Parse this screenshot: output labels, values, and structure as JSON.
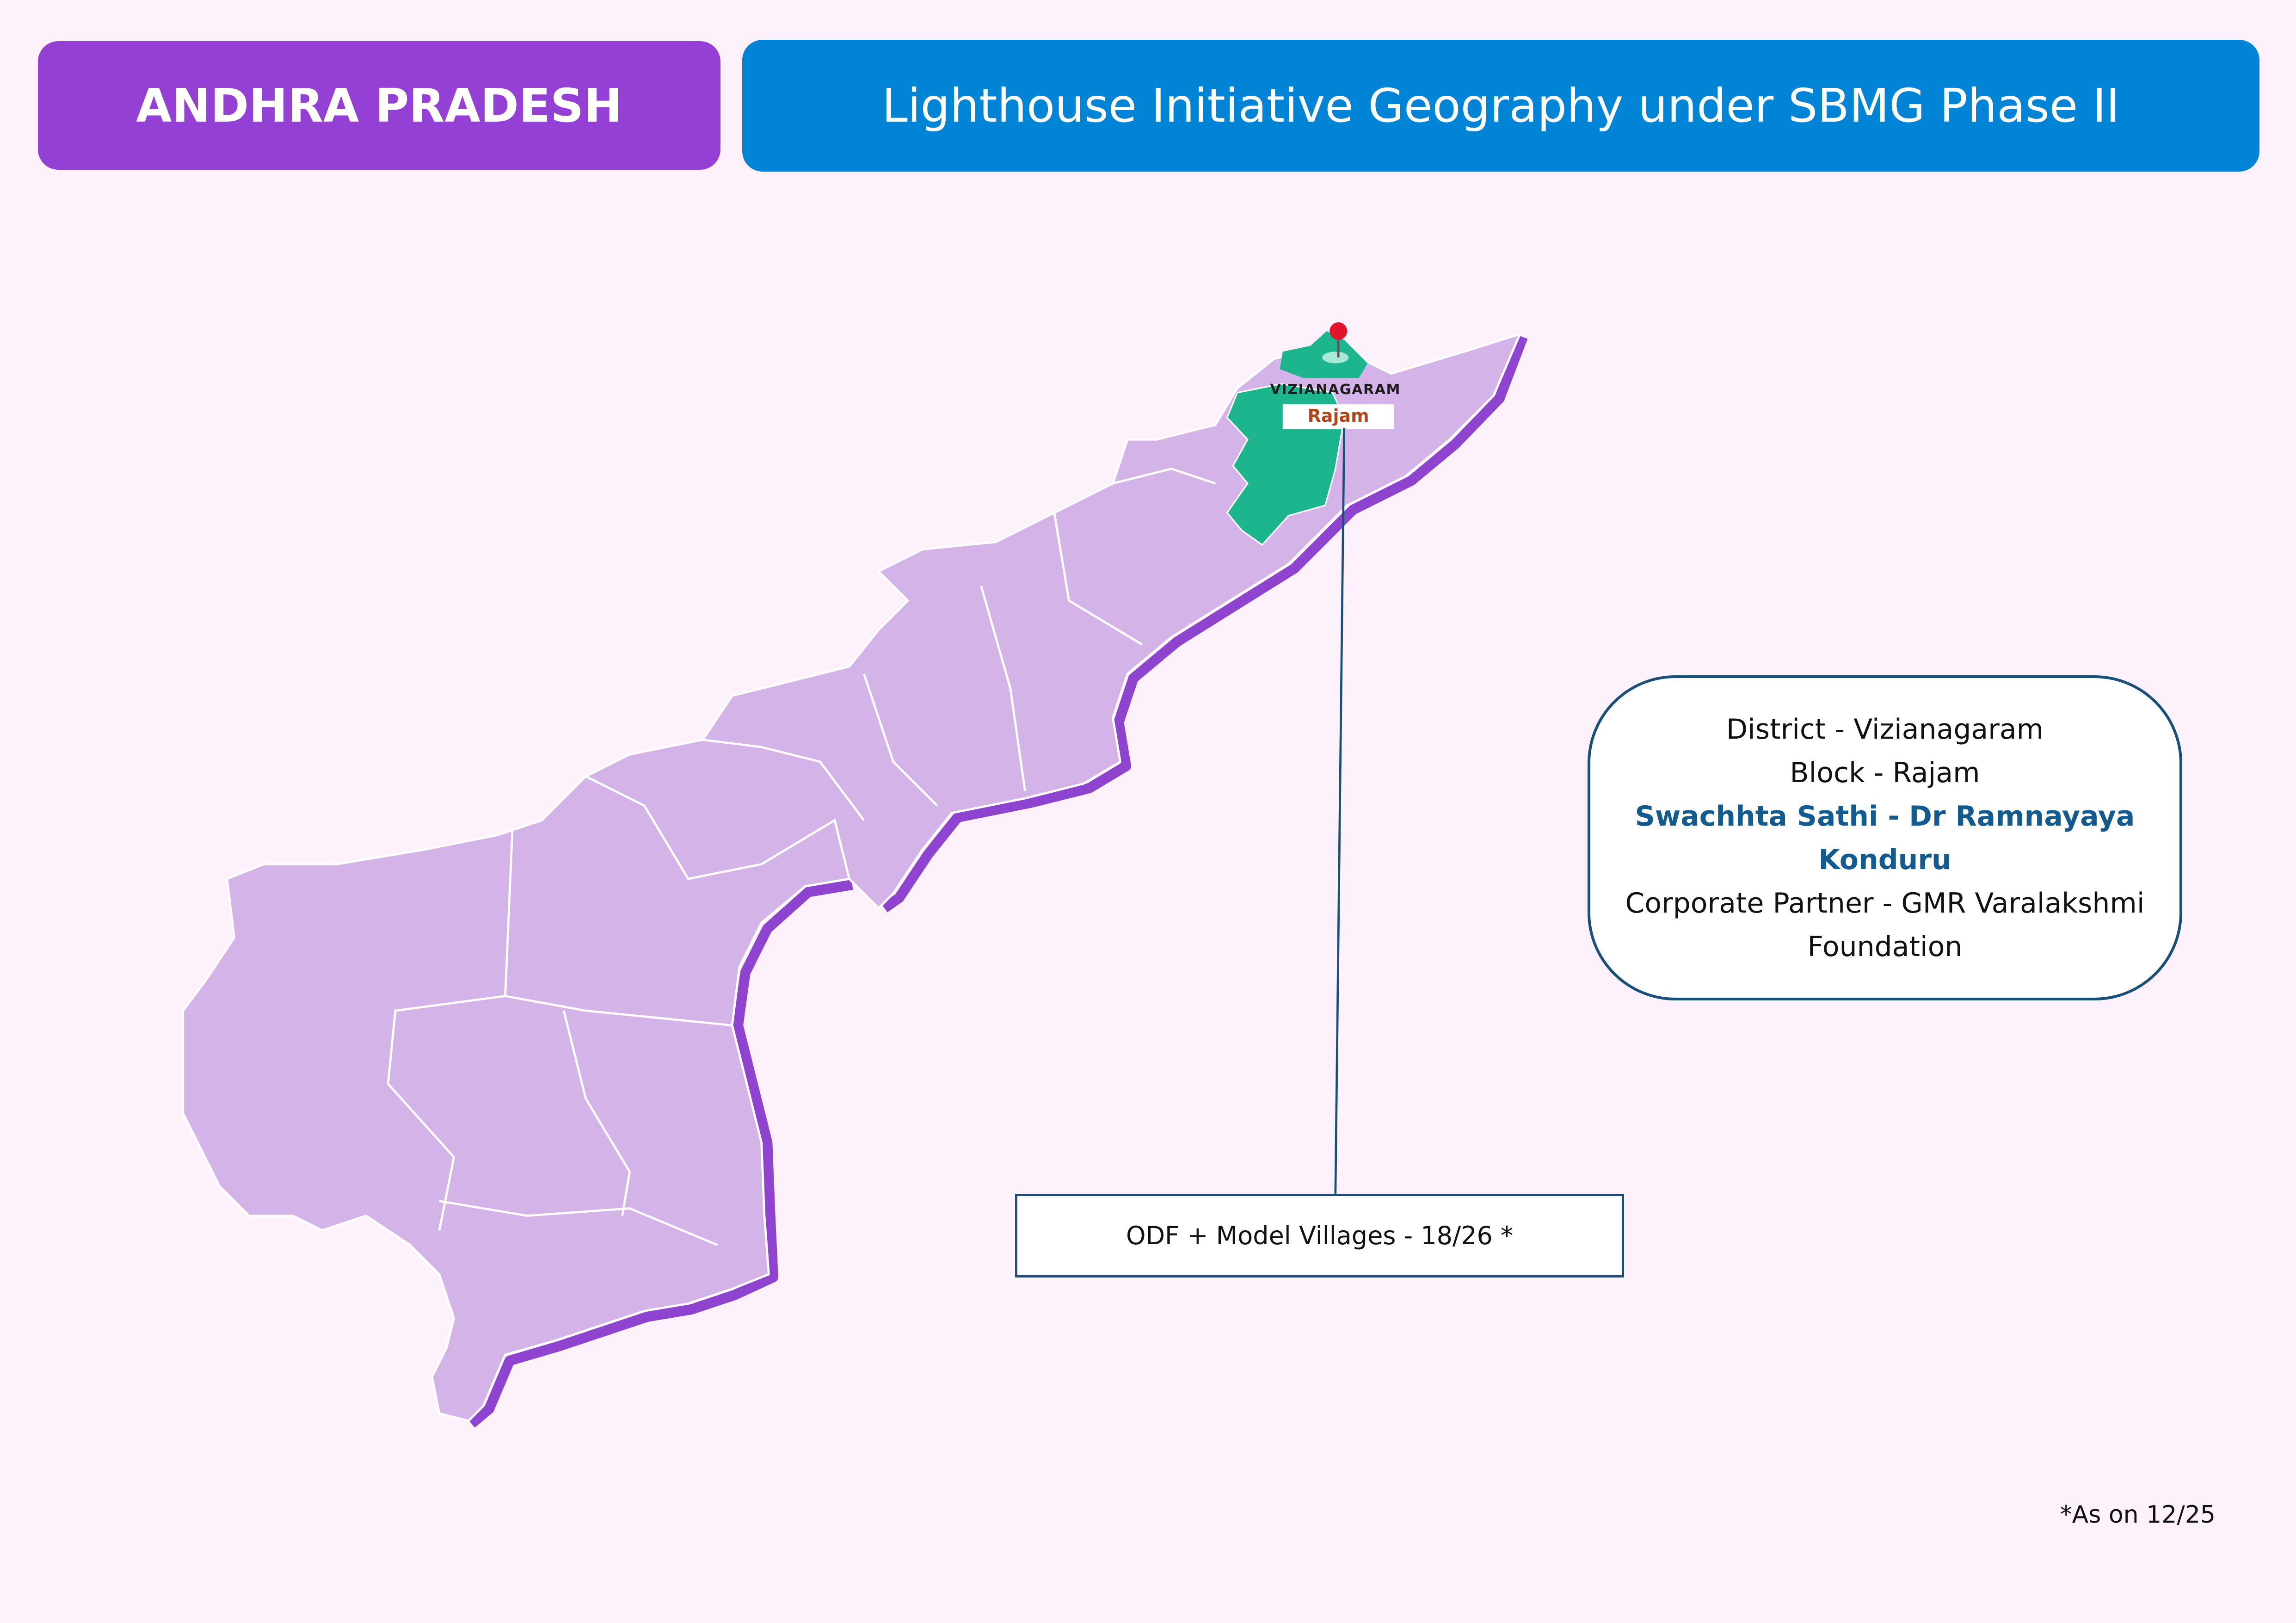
{
  "header": {
    "state": "ANDHRA PRADESH",
    "title": "Lighthouse Initiative Geography under SBMG Phase II"
  },
  "map": {
    "district_label": "VIZIANAGARAM",
    "block_label": "Rajam"
  },
  "info": {
    "lines": [
      "District - Vizianagaram",
      "Block - Rajam",
      "Swachhta Sathi - Dr Ramnayaya Konduru",
      "Corporate Partner - GMR Varalakshmi Foundation"
    ]
  },
  "stat": "ODF + Model Villages - 18/26 *",
  "footnote": "*As on 12/25"
}
